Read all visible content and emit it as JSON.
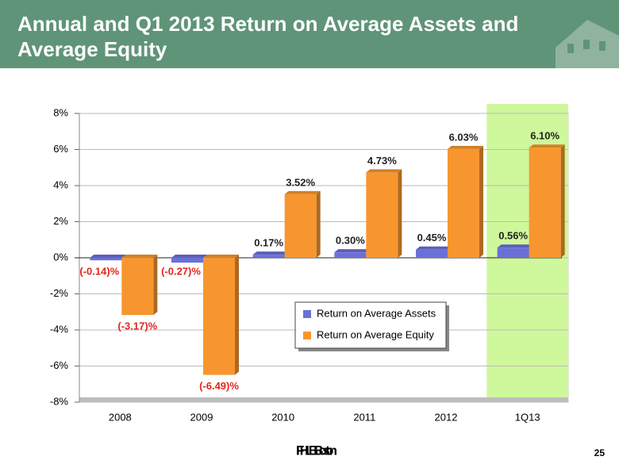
{
  "chart_data": {
    "type": "bar",
    "title": "Annual and Q1 2013 Return on Average Assets and Average Equity",
    "categories": [
      "2008",
      "2009",
      "2010",
      "2011",
      "2012",
      "1Q13"
    ],
    "series": [
      {
        "name": "Return on Average Assets",
        "color": "#6b70d8",
        "values": [
          -0.14,
          -0.27,
          0.17,
          0.3,
          0.45,
          0.56
        ],
        "value_labels": [
          "(-0.14)%",
          "(-0.27)%",
          "0.17%",
          "0.30%",
          "0.45%",
          "0.56%"
        ]
      },
      {
        "name": "Return on Average Equity",
        "color": "#f7962f",
        "values": [
          -3.17,
          -6.49,
          3.52,
          4.73,
          6.03,
          6.1
        ],
        "value_labels": [
          "(-3.17)%",
          "(-6.49)%",
          "3.52%",
          "4.73%",
          "6.03%",
          "6.10%"
        ]
      }
    ],
    "ylim": [
      -8,
      8
    ],
    "yticks": [
      {
        "value": -8,
        "label": "-8%"
      },
      {
        "value": -6,
        "label": "-6%"
      },
      {
        "value": -4,
        "label": "-4%"
      },
      {
        "value": -2,
        "label": "-2%"
      },
      {
        "value": 0,
        "label": "0%"
      },
      {
        "value": 2,
        "label": "2%"
      },
      {
        "value": 4,
        "label": "4%"
      },
      {
        "value": 6,
        "label": "6%"
      },
      {
        "value": 8,
        "label": "8%"
      }
    ],
    "grid": true,
    "highlight": {
      "category_index": 5,
      "color": "#cff79c"
    },
    "negative_label_color": "#e3261d"
  },
  "footer": {
    "logo": "FHLBBoston",
    "page_number": "25"
  }
}
